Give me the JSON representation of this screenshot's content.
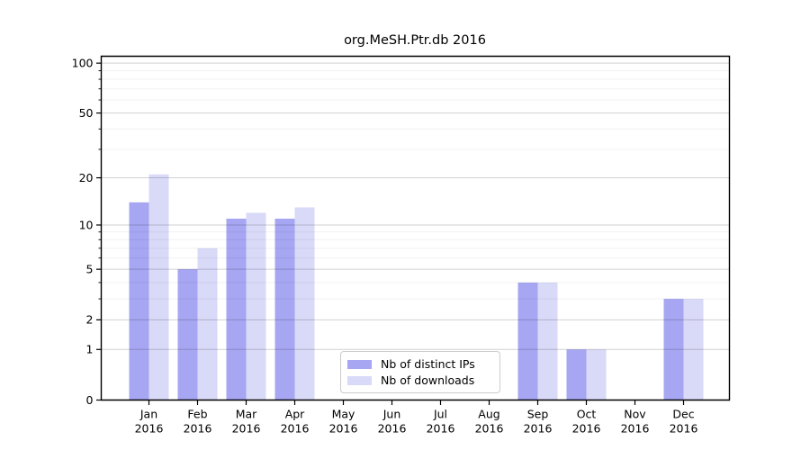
{
  "chart_data": {
    "type": "bar",
    "title": "org.MeSH.Ptr.db 2016",
    "categories": [
      "Jan",
      "Feb",
      "Mar",
      "Apr",
      "May",
      "Jun",
      "Jul",
      "Aug",
      "Sep",
      "Oct",
      "Nov",
      "Dec"
    ],
    "year_label": "2016",
    "series": [
      {
        "name": "Nb of distinct IPs",
        "color": "#a6a6f2",
        "values": [
          14,
          5,
          11,
          11,
          0,
          0,
          0,
          0,
          4,
          1,
          0,
          3
        ]
      },
      {
        "name": "Nb of downloads",
        "color": "#d9d9f8",
        "values": [
          21,
          7,
          12,
          13,
          0,
          0,
          0,
          0,
          4,
          1,
          0,
          3
        ]
      }
    ],
    "yscale": "log1p",
    "yticks": [
      0,
      1,
      2,
      5,
      10,
      20,
      50,
      100
    ],
    "yticks_minor": [
      3,
      4,
      6,
      7,
      8,
      9,
      30,
      40,
      60,
      70,
      80,
      90
    ],
    "ylim": [
      0,
      110
    ],
    "xlabel": "",
    "ylabel": "",
    "grid": "horizontal",
    "legend_position": "lower center"
  }
}
